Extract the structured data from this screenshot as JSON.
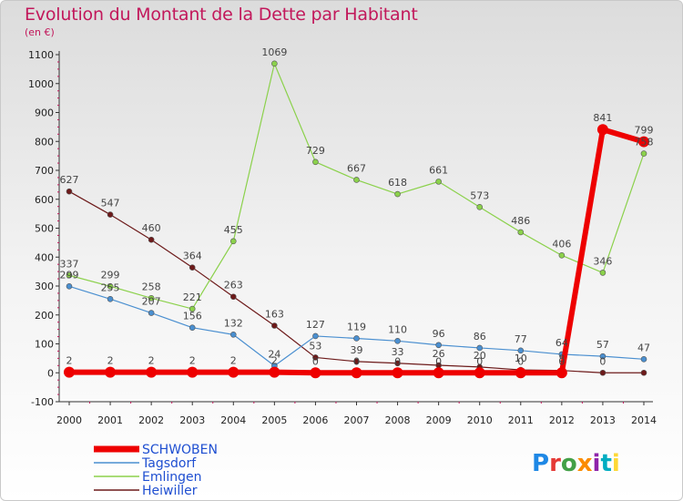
{
  "header": {
    "title": "Evolution du Montant de la Dette par Habitant",
    "subtitle": "(en €)"
  },
  "logo": {
    "text": "Proxiti",
    "colors": [
      "#1e88e5",
      "#e53935",
      "#43a047",
      "#fb8c00",
      "#8e24aa",
      "#00acc1",
      "#fdd835"
    ]
  },
  "chart_data": {
    "type": "line",
    "title": "Evolution du Montant de la Dette par Habitant",
    "subtitle": "(en €)",
    "x": [
      "2000",
      "2001",
      "2002",
      "2003",
      "2004",
      "2005",
      "2006",
      "2007",
      "2008",
      "2009",
      "2010",
      "2011",
      "2012",
      "2013",
      "2014"
    ],
    "ylim": [
      -100,
      1100
    ],
    "yticks": [
      -100,
      0,
      100,
      200,
      300,
      400,
      500,
      600,
      700,
      800,
      900,
      1000,
      1100
    ],
    "grid": false,
    "legend_position": "bottom-left",
    "series": [
      {
        "name": "Heiwiller",
        "color": "#6d1a1a",
        "line_width": 1.2,
        "marker_radius": 3,
        "values": [
          627,
          547,
          460,
          364,
          263,
          163,
          53,
          39,
          33,
          26,
          20,
          10,
          8,
          0,
          0
        ],
        "labels": [
          "627",
          "547",
          "460",
          "364",
          "263",
          "163",
          "53",
          "39",
          "33",
          "26",
          "20",
          "10",
          "8",
          "0",
          ""
        ]
      },
      {
        "name": "Emlingen",
        "color": "#8bd14b",
        "line_width": 1.2,
        "marker_radius": 3,
        "values": [
          337,
          299,
          258,
          221,
          455,
          1069,
          729,
          667,
          618,
          661,
          573,
          486,
          406,
          346,
          758
        ],
        "labels": [
          "337",
          "299",
          "258",
          "221",
          "455",
          "1069",
          "729",
          "667",
          "618",
          "661",
          "573",
          "486",
          "406",
          "346",
          "758"
        ]
      },
      {
        "name": "Tagsdorf",
        "color": "#4a8fd0",
        "line_width": 1.2,
        "marker_radius": 3,
        "values": [
          299,
          255,
          207,
          156,
          132,
          24,
          127,
          119,
          110,
          96,
          86,
          77,
          64,
          57,
          47
        ],
        "labels": [
          "299",
          "255",
          "207",
          "156",
          "132",
          "24",
          "127",
          "119",
          "110",
          "96",
          "86",
          "77",
          "64",
          "57",
          "47"
        ]
      },
      {
        "name": "SCHWOBEN",
        "color": "#ee0000",
        "line_width": 6,
        "marker_radius": 6,
        "values": [
          2,
          2,
          2,
          2,
          2,
          2,
          0,
          0,
          0,
          0,
          0,
          0,
          0,
          841,
          799
        ],
        "labels": [
          "2",
          "2",
          "2",
          "2",
          "2",
          "2",
          "0",
          "0",
          "0",
          "0",
          "0",
          "0",
          "0",
          "841",
          "799"
        ]
      }
    ],
    "legend": [
      {
        "name": "SCHWOBEN",
        "color": "#ee0000",
        "text_color": "#1f4fd1"
      },
      {
        "name": "Tagsdorf",
        "color": "#4a8fd0",
        "text_color": "#1f4fd1"
      },
      {
        "name": "Emlingen",
        "color": "#8bd14b",
        "text_color": "#1f4fd1"
      },
      {
        "name": "Heiwiller",
        "color": "#6d1a1a",
        "text_color": "#1f4fd1"
      }
    ]
  }
}
